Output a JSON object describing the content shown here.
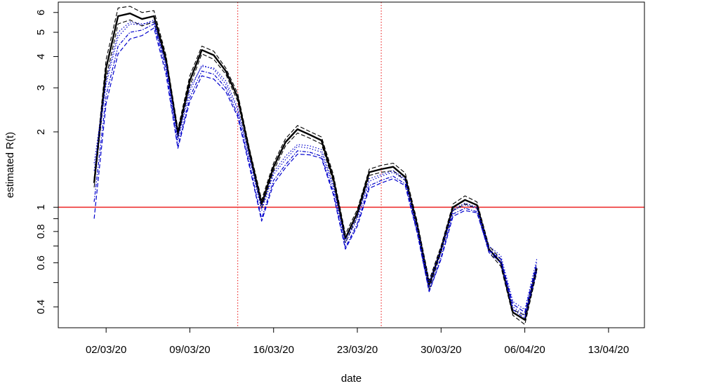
{
  "chart_data": {
    "type": "line",
    "title": "",
    "xlabel": "date",
    "ylabel": "estimated R(t)",
    "y_scale": "log",
    "ylim": [
      0.33,
      6.6
    ],
    "xlim": [
      "2020-02-27",
      "2020-04-16"
    ],
    "grid": false,
    "x_ticks": [
      {
        "date": "2020-03-02",
        "label": "02/03/20"
      },
      {
        "date": "2020-03-09",
        "label": "09/03/20"
      },
      {
        "date": "2020-03-16",
        "label": "16/03/20"
      },
      {
        "date": "2020-03-23",
        "label": "23/03/20"
      },
      {
        "date": "2020-03-30",
        "label": "30/03/20"
      },
      {
        "date": "2020-04-06",
        "label": "06/04/20"
      },
      {
        "date": "2020-04-13",
        "label": "13/04/20"
      }
    ],
    "y_ticks": [
      {
        "value": 0.4,
        "label": "0.4"
      },
      {
        "value": 0.5,
        "label": ""
      },
      {
        "value": 0.6,
        "label": "0.6"
      },
      {
        "value": 0.7,
        "label": ""
      },
      {
        "value": 0.8,
        "label": "0.8"
      },
      {
        "value": 0.9,
        "label": ""
      },
      {
        "value": 1,
        "label": "1"
      },
      {
        "value": 2,
        "label": "2"
      },
      {
        "value": 3,
        "label": "3"
      },
      {
        "value": 4,
        "label": "4"
      },
      {
        "value": 5,
        "label": "5"
      },
      {
        "value": 6,
        "label": "6"
      }
    ],
    "reference_lines": [
      {
        "orientation": "horizontal",
        "value": 1,
        "color": "#ee3333",
        "style": "solid"
      },
      {
        "orientation": "vertical",
        "value": "2020-03-13",
        "color": "#ee3333",
        "style": "dotted"
      },
      {
        "orientation": "vertical",
        "value": "2020-03-25",
        "color": "#ee3333",
        "style": "dotted"
      }
    ],
    "x": [
      "2020-03-01",
      "2020-03-02",
      "2020-03-03",
      "2020-03-04",
      "2020-03-05",
      "2020-03-06",
      "2020-03-07",
      "2020-03-08",
      "2020-03-09",
      "2020-03-10",
      "2020-03-11",
      "2020-03-12",
      "2020-03-13",
      "2020-03-14",
      "2020-03-15",
      "2020-03-16",
      "2020-03-17",
      "2020-03-18",
      "2020-03-19",
      "2020-03-20",
      "2020-03-21",
      "2020-03-22",
      "2020-03-23",
      "2020-03-24",
      "2020-03-25",
      "2020-03-26",
      "2020-03-27",
      "2020-03-28",
      "2020-03-29",
      "2020-03-30",
      "2020-03-31",
      "2020-04-01",
      "2020-04-02",
      "2020-04-03",
      "2020-04-04",
      "2020-04-05",
      "2020-04-06",
      "2020-04-07"
    ],
    "series": [
      {
        "color": "#000000",
        "style": "solid",
        "width": 2.4,
        "values": [
          1.25,
          3.6,
          5.8,
          5.95,
          5.65,
          5.8,
          3.9,
          1.97,
          3.2,
          4.25,
          4.05,
          3.5,
          2.75,
          1.65,
          1.03,
          1.45,
          1.82,
          2.05,
          1.95,
          1.85,
          1.3,
          0.75,
          0.95,
          1.38,
          1.42,
          1.45,
          1.32,
          0.85,
          0.49,
          0.68,
          1.0,
          1.07,
          1.02,
          0.68,
          0.6,
          0.38,
          0.355,
          0.57
        ]
      },
      {
        "color": "#000000",
        "style": "dashed",
        "width": 1.1,
        "values": [
          1.3,
          3.9,
          6.25,
          6.35,
          6.0,
          6.1,
          4.05,
          2.05,
          3.35,
          4.4,
          4.2,
          3.6,
          2.85,
          1.7,
          1.07,
          1.5,
          1.88,
          2.12,
          2.01,
          1.91,
          1.35,
          0.78,
          0.98,
          1.42,
          1.47,
          1.5,
          1.37,
          0.88,
          0.51,
          0.7,
          1.03,
          1.11,
          1.05,
          0.7,
          0.62,
          0.39,
          0.37,
          0.59
        ]
      },
      {
        "color": "#000000",
        "style": "dashed",
        "width": 1.1,
        "values": [
          1.2,
          3.3,
          5.4,
          5.6,
          5.3,
          5.5,
          3.75,
          1.9,
          3.05,
          4.1,
          3.9,
          3.4,
          2.65,
          1.6,
          0.99,
          1.4,
          1.76,
          1.98,
          1.89,
          1.79,
          1.26,
          0.72,
          0.92,
          1.34,
          1.38,
          1.4,
          1.28,
          0.82,
          0.47,
          0.66,
          0.97,
          1.03,
          0.99,
          0.66,
          0.58,
          0.37,
          0.34,
          0.55
        ]
      },
      {
        "color": "#0000cc",
        "style": "dotted",
        "width": 1.2,
        "values": [
          1.4,
          3.1,
          4.8,
          5.4,
          5.35,
          5.6,
          3.7,
          1.85,
          2.9,
          3.7,
          3.55,
          3.1,
          2.45,
          1.55,
          0.97,
          1.35,
          1.55,
          1.75,
          1.72,
          1.66,
          1.2,
          0.72,
          0.9,
          1.27,
          1.33,
          1.38,
          1.28,
          0.83,
          0.48,
          0.66,
          0.97,
          1.02,
          0.99,
          0.68,
          0.62,
          0.4,
          0.37,
          0.58
        ]
      },
      {
        "color": "#0000cc",
        "style": "dashdot",
        "width": 1.2,
        "values": [
          1.05,
          2.8,
          4.4,
          5.0,
          5.1,
          5.4,
          3.55,
          1.75,
          2.75,
          3.5,
          3.4,
          3.0,
          2.35,
          1.48,
          0.9,
          1.28,
          1.48,
          1.68,
          1.66,
          1.6,
          1.15,
          0.69,
          0.86,
          1.22,
          1.28,
          1.33,
          1.24,
          0.8,
          0.46,
          0.63,
          0.94,
          0.99,
          0.96,
          0.66,
          0.6,
          0.39,
          0.36,
          0.56
        ]
      },
      {
        "color": "#0000cc",
        "style": "dashed",
        "width": 1.2,
        "values": [
          0.9,
          2.6,
          4.1,
          4.7,
          4.85,
          5.2,
          3.4,
          1.72,
          2.65,
          3.35,
          3.25,
          2.9,
          2.3,
          1.44,
          0.88,
          1.24,
          1.44,
          1.63,
          1.62,
          1.57,
          1.12,
          0.68,
          0.84,
          1.19,
          1.25,
          1.3,
          1.22,
          0.79,
          0.46,
          0.62,
          0.92,
          0.97,
          0.95,
          0.67,
          0.62,
          0.41,
          0.38,
          0.6
        ]
      },
      {
        "color": "#0000cc",
        "style": "dotted",
        "width": 1.2,
        "values": [
          1.5,
          3.2,
          5.0,
          5.5,
          5.4,
          5.5,
          3.75,
          1.9,
          3.0,
          3.65,
          3.6,
          3.2,
          2.5,
          1.58,
          1.0,
          1.38,
          1.6,
          1.78,
          1.76,
          1.7,
          1.22,
          0.74,
          0.92,
          1.3,
          1.35,
          1.4,
          1.3,
          0.84,
          0.5,
          0.68,
          0.98,
          1.04,
          1.0,
          0.7,
          0.64,
          0.42,
          0.39,
          0.62
        ]
      }
    ]
  }
}
